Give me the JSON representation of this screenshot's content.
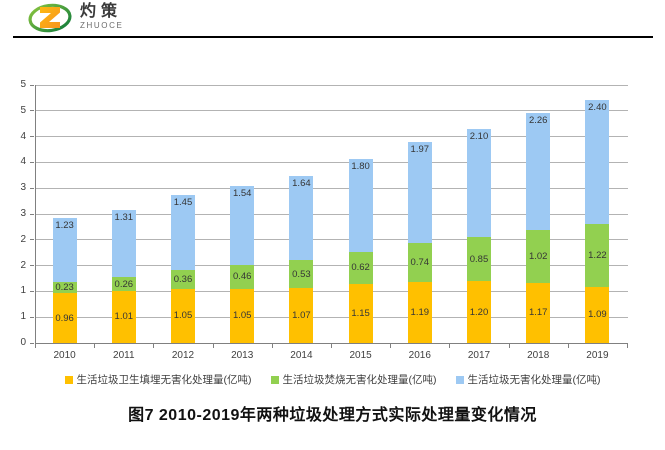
{
  "header": {
    "logo": {
      "brand_cn": "灼策",
      "brand_en": "ZHUOCE",
      "icon": "z-swoosh-logo"
    }
  },
  "chart_data": {
    "type": "bar",
    "stacked": true,
    "title": "图7  2010-2019年两种垃圾处理方式实际处理量变化情况",
    "categories": [
      "2010",
      "2011",
      "2012",
      "2013",
      "2014",
      "2015",
      "2016",
      "2017",
      "2018",
      "2019"
    ],
    "series": [
      {
        "name": "生活垃圾卫生填埋无害化处理量(亿吨)",
        "color": "#FFC000",
        "values": [
          0.96,
          1.01,
          1.05,
          1.05,
          1.07,
          1.15,
          1.19,
          1.2,
          1.17,
          1.09
        ],
        "label_position": "center"
      },
      {
        "name": "生活垃圾焚烧无害化处理量(亿吨)",
        "color": "#92D050",
        "values": [
          0.23,
          0.26,
          0.36,
          0.46,
          0.53,
          0.62,
          0.74,
          0.85,
          1.02,
          1.22
        ],
        "label_position": "center"
      },
      {
        "name": "生活垃圾无害化处理量(亿吨)",
        "color": "#9DC9F3",
        "values": [
          1.23,
          1.31,
          1.45,
          1.54,
          1.64,
          1.8,
          1.97,
          2.1,
          2.26,
          2.4
        ],
        "label_position": "inside-end"
      }
    ],
    "ylim": [
      0,
      5
    ],
    "y_tick_interval": 0.5,
    "y_tick_labels_top_to_bottom": [
      "5",
      "5",
      "4",
      "4",
      "3",
      "3",
      "2",
      "2",
      "1",
      "1",
      "0"
    ],
    "data_label_format": "0.00",
    "grid": true,
    "legend_position": "bottom",
    "axis_color": "#808080",
    "gridline_color": "#B3B3B3"
  }
}
